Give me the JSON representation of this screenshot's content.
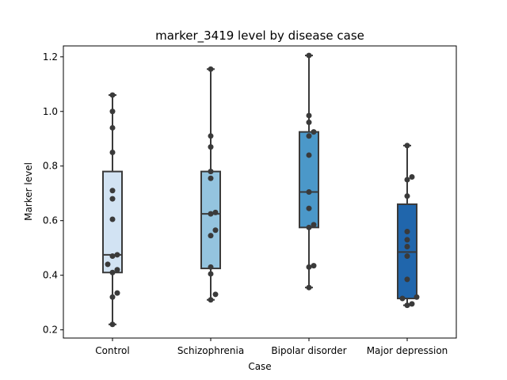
{
  "chart_data": {
    "type": "box",
    "title": "marker_3419 level by disease case",
    "xlabel": "Case",
    "ylabel": "Marker level",
    "ylim": [
      0.17,
      1.24
    ],
    "yticks": [
      0.2,
      0.4,
      0.6,
      0.8,
      1.0,
      1.2
    ],
    "ytick_labels": [
      "0.2",
      "0.4",
      "0.6",
      "0.8",
      "1.0",
      "1.2"
    ],
    "categories": [
      "Control",
      "Schizophrenia",
      "Bipolar disorder",
      "Major depression"
    ],
    "colors": [
      "#d2e3f3",
      "#94c4df",
      "#4b98c9",
      "#2066ac"
    ],
    "boxes": [
      {
        "whisker_low": 0.22,
        "q1": 0.41,
        "median": 0.475,
        "q3": 0.78,
        "whisker_high": 1.06
      },
      {
        "whisker_low": 0.31,
        "q1": 0.425,
        "median": 0.625,
        "q3": 0.78,
        "whisker_high": 1.155
      },
      {
        "whisker_low": 0.355,
        "q1": 0.575,
        "median": 0.705,
        "q3": 0.925,
        "whisker_high": 1.205
      },
      {
        "whisker_low": 0.29,
        "q1": 0.315,
        "median": 0.485,
        "q3": 0.66,
        "whisker_high": 0.875
      }
    ],
    "points": [
      [
        0.22,
        0.32,
        0.335,
        0.41,
        0.42,
        0.44,
        0.47,
        0.475,
        0.605,
        0.68,
        0.71,
        0.85,
        0.94,
        1.0,
        1.06
      ],
      [
        0.31,
        0.33,
        0.405,
        0.43,
        0.545,
        0.565,
        0.625,
        0.63,
        0.755,
        0.78,
        0.87,
        0.91,
        1.155
      ],
      [
        0.355,
        0.43,
        0.435,
        0.575,
        0.585,
        0.645,
        0.705,
        0.84,
        0.91,
        0.925,
        0.96,
        0.985,
        1.205
      ],
      [
        0.29,
        0.295,
        0.315,
        0.32,
        0.385,
        0.47,
        0.505,
        0.53,
        0.56,
        0.69,
        0.75,
        0.76,
        0.875
      ]
    ],
    "grid": false,
    "legend": "none"
  }
}
